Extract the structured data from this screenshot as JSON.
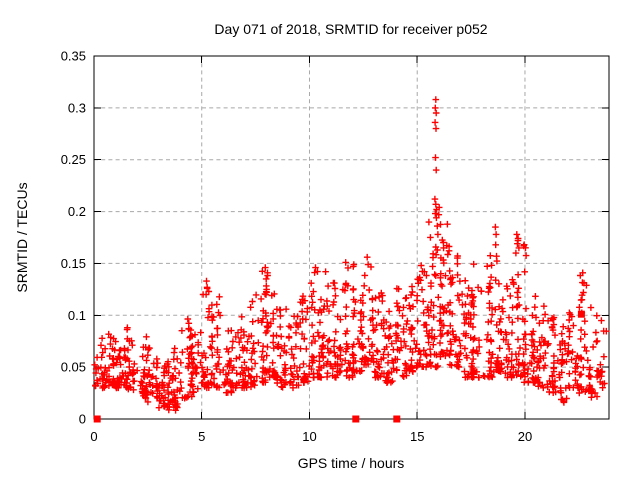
{
  "chart_data": {
    "type": "scatter",
    "title": "Day 071 of 2018, SRMTID for receiver p052",
    "xlabel": "GPS time / hours",
    "ylabel": "SRMTID / TECUs",
    "xlim": [
      0,
      23.9
    ],
    "ylim": [
      0,
      0.35
    ],
    "xticks": [
      0,
      5,
      10,
      15,
      20
    ],
    "yticks": [
      0,
      0.05,
      0.1,
      0.15,
      0.2,
      0.25,
      0.3,
      0.35
    ],
    "grid": true,
    "grid_color": "#a8a8a8",
    "legend": "none",
    "series": [
      {
        "name": "srmtid-plus-markers",
        "marker": "plus",
        "color": "#ff0000",
        "note": "approx 1550 points, dense band 0.02-0.10 TECUs all day, spike to 0.31 near 16h",
        "seed": 20180711,
        "density_bins_x0_x1_n_lo_hi": [
          [
            0.0,
            0.5,
            28,
            0.03,
            0.08
          ],
          [
            0.5,
            1.0,
            30,
            0.032,
            0.085
          ],
          [
            1.0,
            1.5,
            32,
            0.03,
            0.095
          ],
          [
            1.5,
            2.0,
            32,
            0.028,
            0.1
          ],
          [
            2.0,
            2.5,
            30,
            0.02,
            0.08
          ],
          [
            2.5,
            3.0,
            28,
            0.015,
            0.07
          ],
          [
            3.0,
            3.5,
            32,
            0.01,
            0.06
          ],
          [
            3.5,
            4.0,
            34,
            0.008,
            0.07
          ],
          [
            4.0,
            4.5,
            30,
            0.02,
            0.1
          ],
          [
            4.5,
            5.0,
            28,
            0.025,
            0.085
          ],
          [
            5.0,
            5.5,
            30,
            0.03,
            0.133
          ],
          [
            5.5,
            6.0,
            32,
            0.03,
            0.12
          ],
          [
            6.0,
            6.5,
            30,
            0.025,
            0.09
          ],
          [
            6.5,
            7.0,
            30,
            0.03,
            0.1
          ],
          [
            7.0,
            7.5,
            30,
            0.03,
            0.115
          ],
          [
            7.5,
            8.0,
            34,
            0.035,
            0.145
          ],
          [
            8.0,
            8.5,
            34,
            0.04,
            0.14
          ],
          [
            8.5,
            9.0,
            30,
            0.03,
            0.115
          ],
          [
            9.0,
            9.5,
            28,
            0.03,
            0.1
          ],
          [
            9.5,
            10.0,
            30,
            0.035,
            0.12
          ],
          [
            10.0,
            10.5,
            34,
            0.04,
            0.145
          ],
          [
            10.5,
            11.0,
            32,
            0.04,
            0.13
          ],
          [
            11.0,
            11.5,
            34,
            0.04,
            0.135
          ],
          [
            11.5,
            12.0,
            32,
            0.04,
            0.15
          ],
          [
            12.0,
            12.5,
            34,
            0.045,
            0.13
          ],
          [
            12.5,
            13.0,
            34,
            0.05,
            0.155
          ],
          [
            13.0,
            13.5,
            30,
            0.04,
            0.125
          ],
          [
            13.5,
            14.0,
            30,
            0.035,
            0.11
          ],
          [
            14.0,
            14.5,
            30,
            0.04,
            0.13
          ],
          [
            14.5,
            15.0,
            34,
            0.045,
            0.14
          ],
          [
            15.0,
            15.5,
            34,
            0.05,
            0.15
          ],
          [
            15.5,
            16.0,
            40,
            0.05,
            0.19
          ],
          [
            16.0,
            16.5,
            44,
            0.06,
            0.19
          ],
          [
            16.5,
            17.0,
            38,
            0.05,
            0.165
          ],
          [
            17.0,
            17.5,
            34,
            0.04,
            0.14
          ],
          [
            17.5,
            18.0,
            34,
            0.04,
            0.15
          ],
          [
            18.0,
            18.5,
            34,
            0.04,
            0.16
          ],
          [
            18.5,
            19.0,
            34,
            0.045,
            0.155
          ],
          [
            19.0,
            19.5,
            34,
            0.04,
            0.14
          ],
          [
            19.5,
            20.0,
            38,
            0.04,
            0.18
          ],
          [
            20.0,
            20.5,
            34,
            0.035,
            0.12
          ],
          [
            20.5,
            21.0,
            30,
            0.03,
            0.11
          ],
          [
            21.0,
            21.5,
            30,
            0.025,
            0.1
          ],
          [
            21.5,
            22.0,
            28,
            0.015,
            0.095
          ],
          [
            22.0,
            22.5,
            30,
            0.03,
            0.11
          ],
          [
            22.5,
            23.0,
            30,
            0.025,
            0.14
          ],
          [
            23.0,
            23.5,
            26,
            0.02,
            0.12
          ],
          [
            23.5,
            23.9,
            14,
            0.03,
            0.1
          ]
        ],
        "notable_points": [
          [
            15.86,
            0.308
          ],
          [
            15.84,
            0.3
          ],
          [
            15.88,
            0.295
          ],
          [
            15.83,
            0.286
          ],
          [
            15.87,
            0.28
          ],
          [
            15.85,
            0.252
          ],
          [
            15.88,
            0.24
          ],
          [
            15.82,
            0.212
          ],
          [
            15.86,
            0.207
          ],
          [
            15.9,
            0.202
          ],
          [
            15.84,
            0.198
          ],
          [
            15.89,
            0.194
          ],
          [
            16.02,
            0.204
          ],
          [
            16.0,
            0.197
          ],
          [
            15.93,
            0.186
          ],
          [
            15.96,
            0.178
          ],
          [
            18.63,
            0.185
          ],
          [
            18.66,
            0.178
          ],
          [
            18.64,
            0.168
          ],
          [
            18.68,
            0.157
          ],
          [
            19.62,
            0.178
          ],
          [
            19.68,
            0.174
          ],
          [
            19.65,
            0.169
          ],
          [
            19.72,
            0.165
          ],
          [
            19.58,
            0.16
          ],
          [
            22.68,
            0.141
          ],
          [
            22.74,
            0.131
          ],
          [
            22.71,
            0.122
          ],
          [
            5.22,
            0.133
          ],
          [
            5.25,
            0.127
          ],
          [
            5.2,
            0.12
          ],
          [
            7.95,
            0.146
          ],
          [
            8.05,
            0.141
          ],
          [
            10.28,
            0.146
          ],
          [
            10.75,
            0.142
          ],
          [
            12.68,
            0.156
          ],
          [
            12.72,
            0.149
          ],
          [
            11.68,
            0.151
          ]
        ]
      },
      {
        "name": "flag-square-markers",
        "marker": "square",
        "color": "#ff0000",
        "points": [
          [
            0.15,
            0
          ],
          [
            12.15,
            0
          ],
          [
            14.05,
            0
          ],
          [
            22.62,
            0.101
          ]
        ]
      }
    ]
  }
}
